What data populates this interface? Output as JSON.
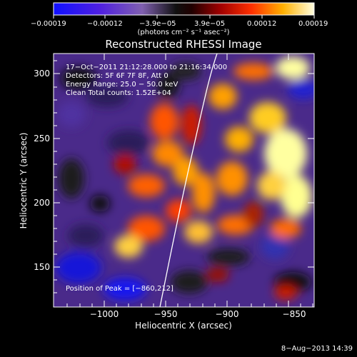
{
  "colorbar": {
    "ticks": [
      "−0.00019",
      "−0.00012",
      "−3.9e−05",
      "3.9e−05",
      "0.00012",
      "0.00019"
    ],
    "units": "(photons cm⁻² s⁻¹ asec⁻²)"
  },
  "plot": {
    "title": "Reconstructed RHESSI Image",
    "xlabel": "Heliocentric X (arcsec)",
    "ylabel": "Heliocentric Y (arcsec)",
    "xticks": [
      "−1000",
      "−950",
      "−900",
      "−850"
    ],
    "yticks": [
      "150",
      "200",
      "250",
      "300"
    ]
  },
  "info": {
    "line1": "17−Oct−2011 21:12:28.000 to 21:16:34.000",
    "line2": "Detectors: 5F 6F 7F 8F, Att 0",
    "line3": "Energy Range: 25.0 − 50.0 keV",
    "line4": "Clean    Total counts: 1.52E+04"
  },
  "peak": "Position of Peak = [−860,212]",
  "timestamp": "8−Aug−2013 14:39",
  "chart_data": {
    "type": "heatmap",
    "title": "Reconstructed RHESSI Image",
    "xlabel": "Heliocentric X (arcsec)",
    "ylabel": "Heliocentric Y (arcsec)",
    "xlim": [
      -1040,
      -845
    ],
    "ylim": [
      120,
      318
    ],
    "color_range": [
      -0.00019,
      0.00019
    ],
    "peak": [
      -860,
      212
    ],
    "limb_curve": {
      "x": [
        -957,
        -945,
        -934,
        -920,
        -905
      ],
      "y": [
        120,
        180,
        240,
        290,
        318
      ]
    }
  }
}
